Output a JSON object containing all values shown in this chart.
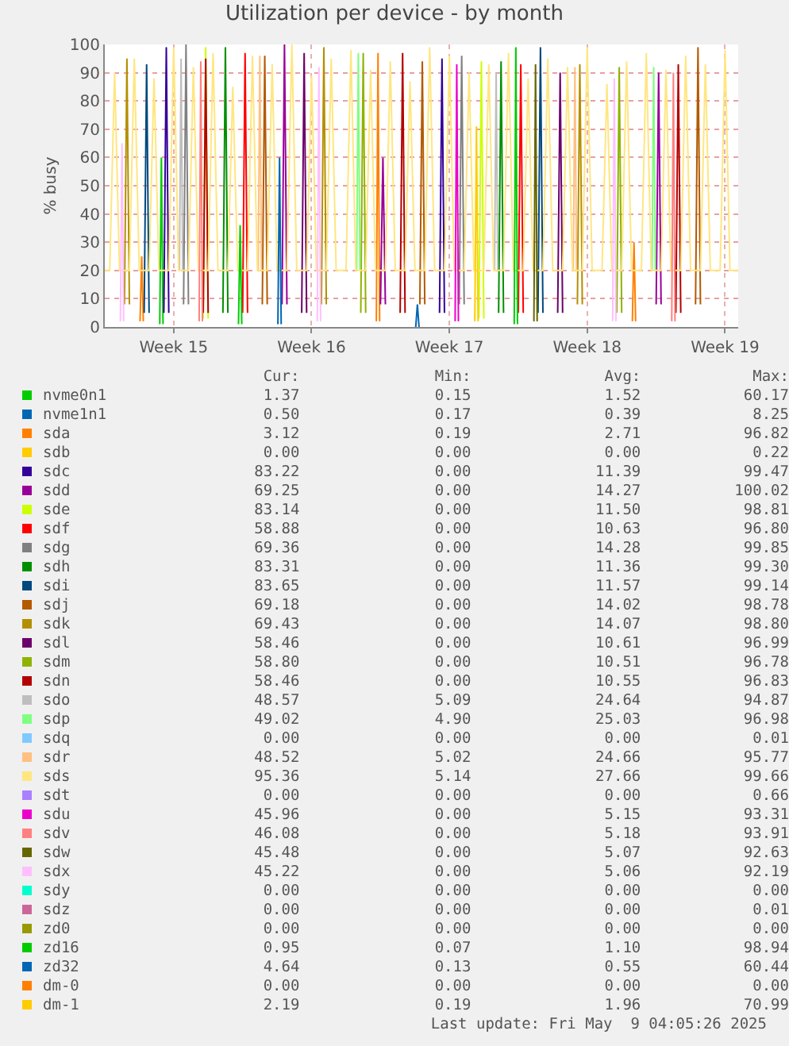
{
  "chart_data": {
    "type": "line",
    "title": "Utilization per device - by month",
    "ylabel": "% busy",
    "xlim": [
      "2025-04-07T00:00",
      "2025-05-09T04:00"
    ],
    "xticks": [
      {
        "value": "2025-04-10T12:00",
        "label": "Week 15"
      },
      {
        "value": "2025-04-17T12:00",
        "label": "Week 16"
      },
      {
        "value": "2025-04-24T12:00",
        "label": "Week 17"
      },
      {
        "value": "2025-05-01T12:00",
        "label": "Week 18"
      },
      {
        "value": "2025-05-08T12:00",
        "label": "Week 19"
      }
    ],
    "ylim": [
      0,
      100
    ],
    "yticks": [
      0,
      10,
      20,
      30,
      40,
      50,
      60,
      70,
      80,
      90,
      100
    ],
    "grid": true,
    "legend": "bottom",
    "series": [
      {
        "name": "nvme0n1",
        "color": "#00cc00",
        "x": [
          "2025-04-09T19:00",
          "2025-04-09T21:00",
          "2025-04-09T23:00"
        ],
        "values": [
          1,
          60,
          1
        ]
      },
      {
        "name": "nvme1n1",
        "color": "#0066b3",
        "x": [
          "2025-04-22T19:00",
          "2025-04-22T21:00",
          "2025-04-22T23:00"
        ],
        "values": [
          0,
          8,
          0
        ]
      },
      {
        "name": "sda",
        "color": "#ff8000",
        "x": [
          "2025-04-08T19:00",
          "2025-04-08T21:00",
          "2025-04-08T23:00",
          "2025-04-08T23:30",
          "2025-04-20T19:00",
          "2025-04-20T21:00",
          "2025-04-20T23:00",
          "2025-04-20T23:30",
          "2025-05-03T19:00",
          "2025-05-03T21:00",
          "2025-05-03T23:00"
        ],
        "values": [
          2,
          25,
          2,
          null,
          2,
          97,
          2,
          null,
          2,
          30,
          2
        ]
      },
      {
        "name": "sdb",
        "color": "#ffcc00"
      },
      {
        "name": "sdc",
        "color": "#330099",
        "x": [
          "2025-04-10T00:00",
          "2025-04-10T03:00",
          "2025-04-10T06:00",
          "2025-04-10T06:30",
          "2025-04-24T00:00",
          "2025-04-24T03:00",
          "2025-04-24T06:00"
        ],
        "values": [
          5,
          99,
          5,
          null,
          5,
          95,
          5
        ]
      },
      {
        "name": "sdd",
        "color": "#990099",
        "x": [
          "2025-04-16T00:00",
          "2025-04-16T03:00",
          "2025-04-16T06:00",
          "2025-04-16T06:30",
          "2025-04-21T00:00",
          "2025-04-21T03:00",
          "2025-04-21T06:00",
          "2025-04-21T06:30",
          "2025-05-05T00:00",
          "2025-05-05T03:00",
          "2025-05-05T06:00"
        ],
        "values": [
          8,
          100,
          8,
          null,
          8,
          60,
          8,
          null,
          8,
          90,
          8
        ]
      },
      {
        "name": "sde",
        "color": "#ccff00",
        "x": [
          "2025-04-12T00:00",
          "2025-04-12T03:00",
          "2025-04-12T06:00",
          "2025-04-12T06:30",
          "2025-04-26T00:00",
          "2025-04-26T03:00",
          "2025-04-26T06:00"
        ],
        "values": [
          3,
          99,
          3,
          null,
          3,
          94,
          3
        ]
      },
      {
        "name": "sdf",
        "color": "#ff0000",
        "x": [
          "2025-04-14T00:00",
          "2025-04-14T03:00",
          "2025-04-14T06:00",
          "2025-04-14T06:30",
          "2025-04-28T00:00",
          "2025-04-28T03:00",
          "2025-04-28T06:00"
        ],
        "values": [
          5,
          97,
          5,
          null,
          5,
          93,
          5
        ]
      },
      {
        "name": "sdg",
        "color": "#808080",
        "x": [
          "2025-04-11T00:00",
          "2025-04-11T03:00",
          "2025-04-11T06:00",
          "2025-04-11T06:30",
          "2025-04-25T00:00",
          "2025-04-25T03:00",
          "2025-04-25T06:00"
        ],
        "values": [
          8,
          100,
          8,
          null,
          8,
          96,
          8
        ]
      },
      {
        "name": "sdh",
        "color": "#008f00",
        "x": [
          "2025-04-13T00:00",
          "2025-04-13T03:00",
          "2025-04-13T06:00",
          "2025-04-13T06:30",
          "2025-04-27T00:00",
          "2025-04-27T03:00",
          "2025-04-27T06:00"
        ],
        "values": [
          5,
          99,
          5,
          null,
          5,
          94,
          5
        ]
      },
      {
        "name": "sdi",
        "color": "#00487d",
        "x": [
          "2025-04-09T00:00",
          "2025-04-09T03:00",
          "2025-04-09T06:00",
          "2025-04-09T06:30",
          "2025-04-29T00:00",
          "2025-04-29T03:00",
          "2025-04-29T06:00"
        ],
        "values": [
          5,
          93,
          5,
          null,
          5,
          99,
          5
        ]
      },
      {
        "name": "sdj",
        "color": "#b35a00",
        "x": [
          "2025-04-15T00:00",
          "2025-04-15T03:00",
          "2025-04-15T06:00",
          "2025-04-15T06:30",
          "2025-04-23T00:00",
          "2025-04-23T03:00",
          "2025-04-23T06:00",
          "2025-04-23T06:30",
          "2025-05-07T00:00",
          "2025-05-07T03:00",
          "2025-05-07T06:00"
        ],
        "values": [
          8,
          96,
          8,
          null,
          8,
          94,
          8,
          null,
          8,
          99,
          8
        ]
      },
      {
        "name": "sdk",
        "color": "#b38f00",
        "x": [
          "2025-04-08T00:00",
          "2025-04-08T03:00",
          "2025-04-08T06:00",
          "2025-04-08T06:30",
          "2025-04-18T00:00",
          "2025-04-18T03:00",
          "2025-04-18T06:00",
          "2025-04-18T06:30",
          "2025-05-01T00:00",
          "2025-05-01T03:00",
          "2025-05-01T06:00"
        ],
        "values": [
          8,
          95,
          8,
          null,
          8,
          99,
          8,
          null,
          8,
          93,
          8
        ]
      },
      {
        "name": "sdl",
        "color": "#6b006b",
        "x": [
          "2025-04-17T00:00",
          "2025-04-17T03:00",
          "2025-04-17T06:00",
          "2025-04-17T06:30",
          "2025-04-30T00:00",
          "2025-04-30T03:00",
          "2025-04-30T06:00"
        ],
        "values": [
          5,
          97,
          5,
          null,
          5,
          90,
          5
        ]
      },
      {
        "name": "sdm",
        "color": "#8fb300",
        "x": [
          "2025-04-20T00:00",
          "2025-04-20T03:00",
          "2025-04-20T06:00",
          "2025-04-20T06:30",
          "2025-05-03T00:00",
          "2025-05-03T03:00",
          "2025-05-03T06:00"
        ],
        "values": [
          5,
          97,
          5,
          null,
          5,
          92,
          5
        ]
      },
      {
        "name": "sdn",
        "color": "#b30000",
        "x": [
          "2025-04-12T00:00",
          "2025-04-12T03:00",
          "2025-04-12T06:00",
          "2025-04-12T06:30",
          "2025-04-22T00:00",
          "2025-04-22T03:00",
          "2025-04-22T06:00",
          "2025-04-22T06:30",
          "2025-05-06T00:00",
          "2025-05-06T03:00",
          "2025-05-06T06:00"
        ],
        "values": [
          5,
          95,
          5,
          null,
          5,
          97,
          5,
          null,
          5,
          93,
          5
        ]
      },
      {
        "name": "sdo",
        "color": "#bebebe",
        "x": [
          "2025-04-10T19:00",
          "2025-04-10T21:00",
          "2025-04-10T23:00",
          "2025-04-10T23:30",
          "2025-04-26T19:00",
          "2025-04-26T21:00",
          "2025-04-26T23:00"
        ],
        "values": [
          20,
          95,
          20,
          null,
          20,
          90,
          20
        ]
      },
      {
        "name": "sdp",
        "color": "#80ff80",
        "x": [
          "2025-04-19T19:00",
          "2025-04-19T21:00",
          "2025-04-19T23:00",
          "2025-04-19T23:30",
          "2025-05-04T19:00",
          "2025-05-04T21:00",
          "2025-05-04T23:00"
        ],
        "values": [
          20,
          97,
          20,
          null,
          20,
          92,
          20
        ]
      },
      {
        "name": "sdq",
        "color": "#80c9ff"
      },
      {
        "name": "sdr",
        "color": "#ffc080",
        "x": [
          "2025-04-14T19:00",
          "2025-04-14T21:00",
          "2025-04-14T23:00",
          "2025-04-14T23:30",
          "2025-04-30T19:00",
          "2025-04-30T21:00",
          "2025-04-30T23:00"
        ],
        "values": [
          20,
          96,
          20,
          null,
          20,
          92,
          20
        ]
      },
      {
        "name": "sds",
        "color": "#ffe680",
        "x": [
          "2025-04-07T00:00",
          "2025-04-07T06:00",
          "2025-04-07T12:00",
          "2025-04-07T18:00",
          "2025-04-08T06:00",
          "2025-04-08T12:00",
          "2025-04-08T18:00",
          "2025-04-09T06:00",
          "2025-04-09T12:00",
          "2025-04-09T18:00",
          "2025-04-10T06:00",
          "2025-04-10T12:00",
          "2025-04-10T18:00",
          "2025-04-11T06:00",
          "2025-04-11T12:00",
          "2025-04-11T18:00",
          "2025-04-12T06:00",
          "2025-04-12T12:00",
          "2025-04-12T18:00",
          "2025-04-13T06:00",
          "2025-04-13T12:00",
          "2025-04-13T18:00",
          "2025-04-14T06:00",
          "2025-04-14T12:00",
          "2025-04-14T18:00",
          "2025-04-15T06:00",
          "2025-04-15T12:00",
          "2025-04-15T18:00",
          "2025-04-16T06:00",
          "2025-04-16T12:00",
          "2025-04-16T18:00",
          "2025-04-17T06:00",
          "2025-04-17T12:00",
          "2025-04-17T18:00",
          "2025-04-18T06:00",
          "2025-04-18T12:00",
          "2025-04-18T18:00",
          "2025-04-19T06:00",
          "2025-04-19T12:00",
          "2025-04-19T18:00",
          "2025-04-20T06:00",
          "2025-04-20T12:00",
          "2025-04-20T18:00",
          "2025-04-21T06:00",
          "2025-04-21T12:00",
          "2025-04-21T18:00",
          "2025-04-22T06:00",
          "2025-04-22T12:00",
          "2025-04-22T18:00",
          "2025-04-23T06:00",
          "2025-04-23T12:00",
          "2025-04-23T18:00",
          "2025-04-24T06:00",
          "2025-04-24T12:00",
          "2025-04-24T18:00",
          "2025-04-25T06:00",
          "2025-04-25T12:00",
          "2025-04-25T18:00",
          "2025-04-26T06:00",
          "2025-04-26T12:00",
          "2025-04-26T18:00",
          "2025-04-27T06:00",
          "2025-04-27T12:00",
          "2025-04-27T18:00",
          "2025-04-28T06:00",
          "2025-04-28T12:00",
          "2025-04-28T18:00",
          "2025-04-29T06:00",
          "2025-04-29T12:00",
          "2025-04-29T18:00",
          "2025-04-30T06:00",
          "2025-04-30T12:00",
          "2025-04-30T18:00",
          "2025-05-01T06:00",
          "2025-05-01T12:00",
          "2025-05-01T18:00",
          "2025-05-02T06:00",
          "2025-05-02T12:00",
          "2025-05-02T18:00",
          "2025-05-03T06:00",
          "2025-05-03T12:00",
          "2025-05-03T18:00",
          "2025-05-04T06:00",
          "2025-05-04T12:00",
          "2025-05-04T18:00",
          "2025-05-05T06:00",
          "2025-05-05T12:00",
          "2025-05-05T18:00",
          "2025-05-06T06:00",
          "2025-05-06T12:00",
          "2025-05-06T18:00",
          "2025-05-07T06:00",
          "2025-05-07T12:00",
          "2025-05-07T18:00",
          "2025-05-08T06:00",
          "2025-05-08T12:00",
          "2025-05-08T18:00",
          "2025-05-09T04:00"
        ],
        "values": [
          20,
          20,
          90,
          20,
          20,
          95,
          20,
          20,
          88,
          20,
          20,
          99,
          20,
          20,
          92,
          20,
          20,
          97,
          20,
          20,
          85,
          20,
          20,
          96,
          20,
          20,
          93,
          20,
          20,
          100,
          20,
          20,
          89,
          20,
          20,
          95,
          20,
          20,
          98,
          20,
          20,
          91,
          20,
          20,
          94,
          20,
          20,
          87,
          20,
          20,
          99,
          20,
          20,
          96,
          20,
          20,
          90,
          20,
          20,
          93,
          20,
          20,
          97,
          20,
          20,
          88,
          20,
          20,
          95,
          20,
          20,
          92,
          20,
          20,
          99,
          20,
          20,
          86,
          20,
          20,
          94,
          20,
          20,
          97,
          20,
          20,
          91,
          20,
          20,
          96,
          20,
          20,
          93,
          20,
          20,
          98,
          20,
          20
        ]
      },
      {
        "name": "sdt",
        "color": "#aa80ff"
      },
      {
        "name": "sdu",
        "color": "#ee00cc",
        "x": [
          "2025-04-24T19:00",
          "2025-04-24T21:00",
          "2025-04-24T23:00"
        ],
        "values": [
          2,
          93,
          2
        ]
      },
      {
        "name": "sdv",
        "color": "#ff8080",
        "x": [
          "2025-04-11T19:00",
          "2025-04-11T21:00",
          "2025-04-11T23:00",
          "2025-04-11T23:30",
          "2025-05-05T19:00",
          "2025-05-05T21:00",
          "2025-05-05T23:00"
        ],
        "values": [
          2,
          94,
          2,
          null,
          2,
          90,
          2
        ]
      },
      {
        "name": "sdw",
        "color": "#666600",
        "x": [
          "2025-04-28T19:00",
          "2025-04-28T21:00",
          "2025-04-28T23:00"
        ],
        "values": [
          2,
          93,
          2
        ]
      },
      {
        "name": "sdx",
        "color": "#ffbfff",
        "x": [
          "2025-04-07T19:00",
          "2025-04-07T21:00",
          "2025-04-07T23:00",
          "2025-04-07T23:30",
          "2025-04-17T19:00",
          "2025-04-17T21:00",
          "2025-04-17T23:00",
          "2025-04-17T23:30",
          "2025-05-02T19:00",
          "2025-05-02T21:00",
          "2025-05-02T23:00"
        ],
        "values": [
          2,
          65,
          2,
          null,
          2,
          92,
          2,
          null,
          2,
          88,
          2
        ]
      },
      {
        "name": "sdy",
        "color": "#00ffcc"
      },
      {
        "name": "sdz",
        "color": "#cc6699"
      },
      {
        "name": "zd0",
        "color": "#999900"
      },
      {
        "name": "zd16",
        "color": "#00cc00",
        "x": [
          "2025-04-13T19:00",
          "2025-04-13T21:00",
          "2025-04-13T23:00",
          "2025-04-13T23:30",
          "2025-04-27T19:00",
          "2025-04-27T21:00",
          "2025-04-27T23:00"
        ],
        "values": [
          1,
          36,
          1,
          null,
          1,
          99,
          1
        ]
      },
      {
        "name": "zd32",
        "color": "#0066b3",
        "x": [
          "2025-04-15T19:00",
          "2025-04-15T21:00",
          "2025-04-15T23:00"
        ],
        "values": [
          1,
          60,
          1
        ]
      },
      {
        "name": "dm-0",
        "color": "#ff8000"
      },
      {
        "name": "dm-1",
        "color": "#ffcc00",
        "x": [
          "2025-04-25T19:00",
          "2025-04-25T21:00",
          "2025-04-25T23:00"
        ],
        "values": [
          2,
          71,
          2
        ]
      }
    ],
    "annotations": [
      "Cur:",
      "Min:",
      "Avg:",
      "Max:",
      "1.37 0.15 1.52 60.17",
      "0.50 0.17 0.39 8.25",
      "3.12 0.19 2.71 96.82",
      "0.00 0.00 0.00 0.22",
      "83.22 0.00 11.39 99.47",
      "69.25 0.00 14.27 100.02",
      "83.14 0.00 11.50 98.81",
      "58.88 0.00 10.63 96.80",
      "69.36 0.00 14.28 99.85",
      "83.31 0.00 11.36 99.30",
      "83.65 0.00 11.57 99.14",
      "69.18 0.00 14.02 98.78",
      "69.43 0.00 14.07 98.80",
      "58.46 0.00 10.61 96.99",
      "58.80 0.00 10.51 96.78",
      "58.46 0.00 10.55 96.83",
      "48.57 5.09 24.64 94.87",
      "49.02 4.90 25.03 96.98",
      "0.00 0.00 0.00 0.01",
      "48.52 5.02 24.66 95.77",
      "95.36 5.14 27.66 99.66",
      "0.00 0.00 0.00 0.66",
      "45.96 0.00 5.15 93.31",
      "46.08 0.00 5.18 93.91",
      "45.48 0.00 5.07 92.63",
      "45.22 0.00 5.06 92.19",
      "0.00 0.00 0.00 0.00",
      "0.00 0.00 0.00 0.01",
      "0.00 0.00 0.00 0.00",
      "0.95 0.07 1.10 98.94",
      "4.64 0.13 0.55 60.44",
      "0.00 0.00 0.00 0.00",
      "2.19 0.19 1.96 70.99",
      "Last update: Fri May  9 04:05:26 2025"
    ]
  }
}
